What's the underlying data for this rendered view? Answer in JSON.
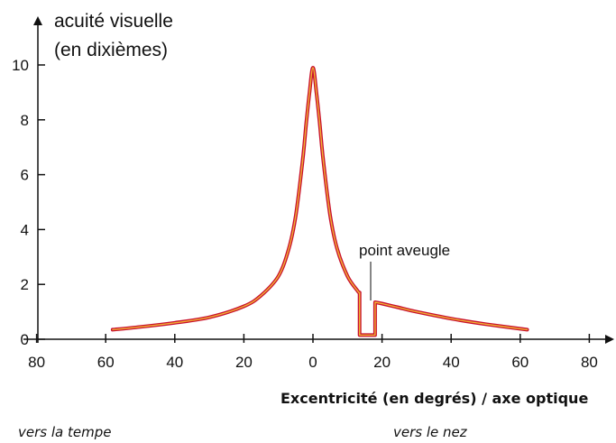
{
  "chart_data": {
    "type": "line",
    "ylabel_lines": [
      "acuité visuelle",
      "(en dixièmes)"
    ],
    "xlabel": "Excentricité (en degrés) / axe optique",
    "left_note": "vers la tempe",
    "right_note": "vers le nez",
    "annotation": "point aveugle",
    "xlim": [
      -80,
      80
    ],
    "ylim": [
      0,
      10
    ],
    "x_ticks": [
      -80,
      -60,
      -40,
      -20,
      0,
      20,
      40,
      60,
      80
    ],
    "x_tick_labels": [
      "80",
      "60",
      "40",
      "20",
      "0",
      "20",
      "40",
      "60",
      "80"
    ],
    "y_ticks": [
      0,
      2,
      4,
      6,
      8,
      10
    ],
    "y_tick_labels": [
      "0",
      "2",
      "4",
      "6",
      "8",
      "10"
    ],
    "grid": false,
    "colors": {
      "line": "#c8102e",
      "line_core": "#f2b233",
      "axis": "#111111"
    },
    "series": [
      {
        "values": [
          [
            -58,
            0.35
          ],
          [
            -50,
            0.45
          ],
          [
            -40,
            0.6
          ],
          [
            -30,
            0.8
          ],
          [
            -20,
            1.2
          ],
          [
            -15,
            1.6
          ],
          [
            -10,
            2.3
          ],
          [
            -7,
            3.3
          ],
          [
            -5,
            4.5
          ],
          [
            -3,
            6.5
          ],
          [
            -2,
            7.8
          ],
          [
            -1,
            9.0
          ],
          [
            0,
            9.9
          ],
          [
            1,
            9.0
          ],
          [
            2,
            7.8
          ],
          [
            3,
            6.5
          ],
          [
            5,
            4.5
          ],
          [
            7,
            3.3
          ],
          [
            10,
            2.3
          ],
          [
            13,
            1.75
          ],
          [
            13.5,
            1.7
          ],
          [
            13.5,
            0.15
          ],
          [
            18,
            0.15
          ],
          [
            18,
            1.35
          ],
          [
            20,
            1.3
          ],
          [
            25,
            1.15
          ],
          [
            30,
            1.0
          ],
          [
            40,
            0.75
          ],
          [
            50,
            0.55
          ],
          [
            62,
            0.35
          ]
        ]
      }
    ]
  }
}
